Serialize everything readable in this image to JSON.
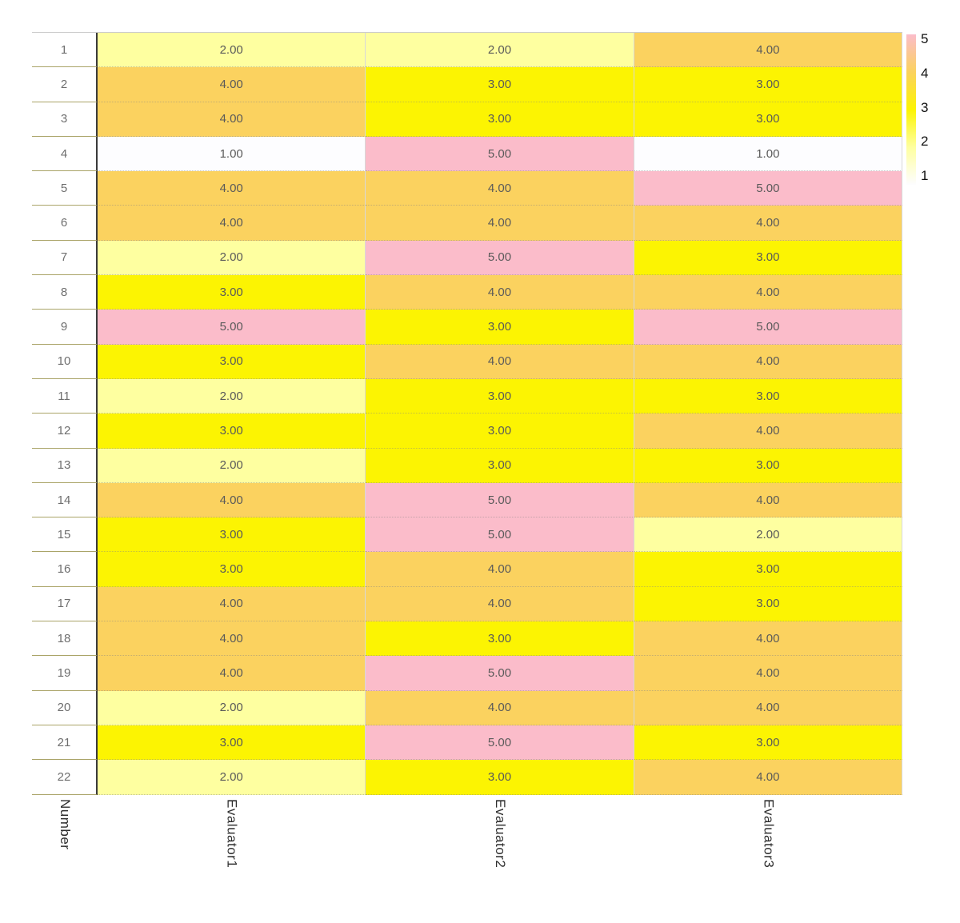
{
  "chart_data": {
    "type": "heatmap",
    "title": "",
    "columns": [
      "Number",
      "Evaluator1",
      "Evaluator2",
      "Evaluator3"
    ],
    "rows": [
      {
        "number": "1",
        "values": [
          2,
          2,
          4
        ]
      },
      {
        "number": "2",
        "values": [
          4,
          3,
          3
        ]
      },
      {
        "number": "3",
        "values": [
          4,
          3,
          3
        ]
      },
      {
        "number": "4",
        "values": [
          1,
          5,
          1
        ]
      },
      {
        "number": "5",
        "values": [
          4,
          4,
          5
        ]
      },
      {
        "number": "6",
        "values": [
          4,
          4,
          4
        ]
      },
      {
        "number": "7",
        "values": [
          2,
          5,
          3
        ]
      },
      {
        "number": "8",
        "values": [
          3,
          4,
          4
        ]
      },
      {
        "number": "9",
        "values": [
          5,
          3,
          5
        ]
      },
      {
        "number": "10",
        "values": [
          3,
          4,
          4
        ]
      },
      {
        "number": "11",
        "values": [
          2,
          3,
          3
        ]
      },
      {
        "number": "12",
        "values": [
          3,
          3,
          4
        ]
      },
      {
        "number": "13",
        "values": [
          2,
          3,
          3
        ]
      },
      {
        "number": "14",
        "values": [
          4,
          5,
          4
        ]
      },
      {
        "number": "15",
        "values": [
          3,
          5,
          2
        ]
      },
      {
        "number": "16",
        "values": [
          3,
          4,
          3
        ]
      },
      {
        "number": "17",
        "values": [
          4,
          4,
          3
        ]
      },
      {
        "number": "18",
        "values": [
          4,
          3,
          4
        ]
      },
      {
        "number": "19",
        "values": [
          4,
          5,
          4
        ]
      },
      {
        "number": "20",
        "values": [
          2,
          4,
          4
        ]
      },
      {
        "number": "21",
        "values": [
          3,
          5,
          3
        ]
      },
      {
        "number": "22",
        "values": [
          2,
          3,
          4
        ]
      }
    ],
    "value_decimals": 2,
    "color_scale": {
      "1": "#fdfdff",
      "2": "#feffa0",
      "3": "#fcf402",
      "4": "#fbd25f",
      "5": "#fbbcca"
    },
    "legend": {
      "tick_labels": [
        "5",
        "4",
        "3",
        "2",
        "1"
      ],
      "min": 1,
      "max": 5,
      "position": "right"
    },
    "axis_ranges": {
      "rows": [
        1,
        22
      ],
      "values": [
        1,
        5
      ]
    },
    "grid": true
  }
}
